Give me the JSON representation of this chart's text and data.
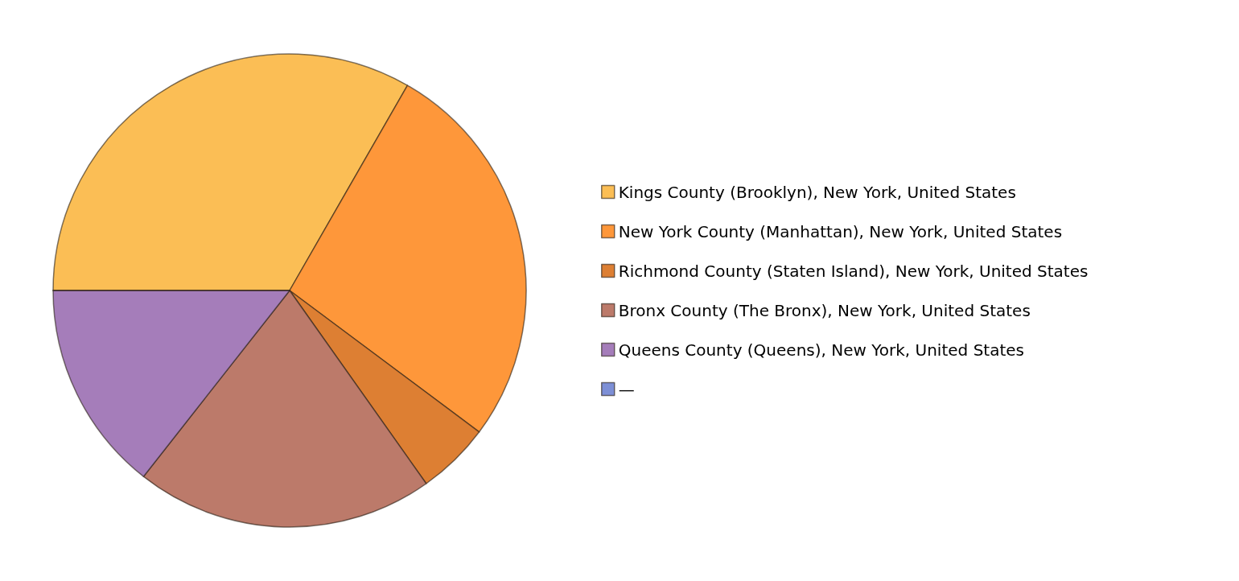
{
  "chart_data": {
    "type": "pie",
    "categories": [
      "Kings County (Brooklyn), New York, United States",
      "New York County (Manhattan), New York, United States",
      "Richmond County (Staten Island), New York, United States",
      "Bronx County (The Bronx), New York, United States",
      "Queens County (Queens), New York, United States",
      "—"
    ],
    "values": [
      33.3,
      26.9,
      5.0,
      20.4,
      14.4,
      0
    ],
    "colors": [
      "#fbbe55",
      "#fe973a",
      "#dd7f33",
      "#bc7a6a",
      "#a57dba",
      "#7d8fd6"
    ],
    "legend": "right"
  }
}
